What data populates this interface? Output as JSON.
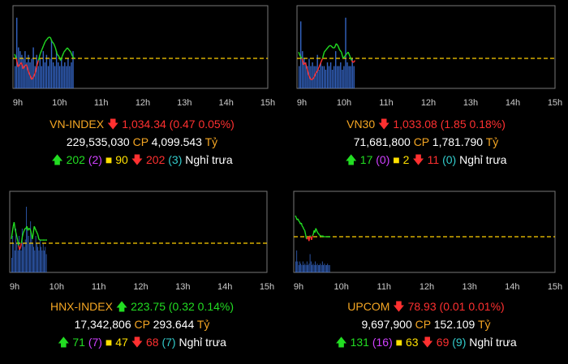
{
  "time_ticks": [
    "9h",
    "10h",
    "11h",
    "12h",
    "13h",
    "14h",
    "15h"
  ],
  "colors": {
    "up": "#22dd22",
    "down": "#ff3030",
    "ref": "#ffd000",
    "volume": "#3a6fd8",
    "border": "#777777"
  },
  "chart_data": [
    {
      "type": "line",
      "name": "VN-INDEX",
      "x_ticks": [
        "9h",
        "10h",
        "11h",
        "12h",
        "13h",
        "14h",
        "15h"
      ],
      "close": "1,034.34",
      "arrow": "down",
      "change": "(0.47 0.05%)",
      "volume": "229,535,030",
      "value_label": "CP",
      "value": "4,099.543",
      "unit": "Tỷ",
      "adv_arrow": "up",
      "adv": "202",
      "ceil": "(2)",
      "ref": "90",
      "dec_arrow": "down",
      "dec": "202",
      "floor": "(3)",
      "session": "Nghỉ trưa",
      "price_profile": [
        0.2,
        0.0,
        -0.4,
        -0.3,
        -0.2,
        -0.5,
        -0.35,
        -0.3,
        -0.6,
        -0.8,
        -1.0,
        -0.9,
        -0.7,
        -0.4,
        -0.1,
        0.2,
        0.4,
        0.6,
        0.8,
        0.9,
        1.0,
        1.0,
        0.8,
        0.7,
        0.5,
        0.2,
        0.1,
        -0.1,
        0.1,
        0.3,
        0.4,
        0.5,
        0.4,
        0.3,
        0.1,
        0.0
      ],
      "volume_profile": [
        0.3,
        0.95,
        0.55,
        0.5,
        0.45,
        0.4,
        0.5,
        0.35,
        0.45,
        0.35,
        0.4,
        0.55,
        0.3,
        0.45,
        0.3,
        0.4,
        0.3,
        0.5,
        0.35,
        0.45,
        0.3,
        0.4,
        0.65,
        0.35,
        0.3,
        0.5,
        0.35,
        0.3,
        0.4,
        0.3,
        0.35,
        0.3,
        0.4,
        0.3,
        0.35,
        0.5
      ]
    },
    {
      "type": "line",
      "name": "VN30",
      "x_ticks": [
        "9h",
        "10h",
        "11h",
        "12h",
        "13h",
        "14h",
        "15h"
      ],
      "close": "1,033.08",
      "arrow": "down",
      "change": "(1.85 0.18%)",
      "volume": "71,681,800",
      "value_label": "CP",
      "value": "1,781.790",
      "unit": "Tỷ",
      "adv_arrow": "up",
      "adv": "17",
      "ceil": "(0)",
      "ref": "2",
      "dec_arrow": "down",
      "dec": "11",
      "floor": "(0)",
      "session": "Nghỉ trưa",
      "price_profile": [
        0.3,
        0.1,
        0.0,
        -0.3,
        -0.2,
        -0.5,
        -0.8,
        -1.0,
        -1.0,
        -0.9,
        -0.7,
        -0.6,
        -0.4,
        -0.2,
        0.0,
        0.3,
        0.4,
        0.5,
        0.6,
        0.6,
        0.5,
        0.5,
        0.7,
        0.6,
        0.4,
        0.3,
        0.0,
        0.1,
        0.2,
        0.3,
        0.1,
        -0.1,
        -0.2,
        -0.1
      ],
      "volume_profile": [
        0.3,
        0.9,
        0.5,
        0.4,
        0.35,
        0.3,
        0.4,
        0.3,
        0.35,
        0.3,
        0.3,
        0.45,
        0.25,
        0.35,
        0.3,
        0.3,
        0.25,
        0.35,
        0.3,
        0.35,
        0.25,
        0.3,
        0.5,
        0.3,
        0.3,
        0.35,
        0.25,
        0.3,
        0.95,
        0.35,
        0.3,
        0.3,
        0.4,
        0.3
      ]
    },
    {
      "type": "line",
      "name": "HNX-INDEX",
      "x_ticks": [
        "9h",
        "10h",
        "11h",
        "12h",
        "13h",
        "14h",
        "15h"
      ],
      "close": "223.75",
      "arrow": "up",
      "change": "(0.32 0.14%)",
      "volume": "17,342,806",
      "value_label": "CP",
      "value": "293.644",
      "unit": "Tỷ",
      "adv_arrow": "up",
      "adv": "71",
      "ceil": "(7)",
      "ref": "47",
      "dec_arrow": "down",
      "dec": "68",
      "floor": "(7)",
      "session": "Nghỉ trưa",
      "price_profile": [
        0.2,
        0.5,
        0.8,
        1.0,
        0.7,
        0.5,
        0.3,
        0.1,
        -0.1,
        -0.3,
        -0.2,
        0.0,
        0.3,
        0.5,
        0.6,
        0.7,
        0.7,
        0.8,
        0.6,
        0.7,
        0.7,
        0.6,
        0.4,
        0.2,
        0.5,
        0.8,
        0.7,
        0.6,
        0.5,
        0.4,
        0.2,
        0.15,
        0.15,
        0.15,
        0.15,
        0.15,
        0.15,
        0.15,
        0.15,
        0.15
      ],
      "volume_profile": [
        0.2,
        0.5,
        0.4,
        0.3,
        0.6,
        0.4,
        0.3,
        0.5,
        0.35,
        0.3,
        0.6,
        0.4,
        0.35,
        0.45,
        0.9,
        0.6,
        0.5,
        0.4,
        0.7,
        0.5,
        0.4,
        0.35,
        0.3,
        0.5,
        0.4,
        0.35,
        0.3,
        0.45,
        0.35,
        0.3,
        0.4,
        0.3,
        0.35,
        0.25
      ]
    },
    {
      "type": "line",
      "name": "UPCOM",
      "x_ticks": [
        "9h",
        "10h",
        "11h",
        "12h",
        "13h",
        "14h",
        "15h"
      ],
      "close": "78.93",
      "arrow": "down",
      "change": "(0.01 0.01%)",
      "volume": "9,697,900",
      "value_label": "CP",
      "value": "152.109",
      "unit": "Tỷ",
      "adv_arrow": "up",
      "adv": "131",
      "ceil": "(16)",
      "ref": "63",
      "dec_arrow": "down",
      "dec": "69",
      "floor": "(9)",
      "session": "Nghỉ trưa",
      "price_profile": [
        1.0,
        0.9,
        0.8,
        0.85,
        0.75,
        0.7,
        0.6,
        0.65,
        0.5,
        0.45,
        0.35,
        0.3,
        0.1,
        -0.1,
        -0.1,
        0.0,
        -0.2,
        0.05,
        0.0,
        -0.15,
        0.05,
        0.1,
        0.3,
        0.2,
        0.4,
        0.3,
        0.2,
        0.15,
        0.1,
        0.05,
        0.05,
        0.0,
        0.05,
        0.0,
        0.0,
        0.0,
        0.0,
        0.0,
        0.0,
        0.0,
        0.0,
        0.0
      ],
      "volume_profile": [
        0.15,
        0.3,
        0.15,
        0.1,
        0.15,
        0.12,
        0.1,
        0.15,
        0.1,
        0.12,
        0.1,
        0.15,
        0.1,
        0.12,
        0.25,
        0.15,
        0.1,
        0.12,
        0.1,
        0.15,
        0.1,
        0.12,
        0.1,
        0.1,
        0.12,
        0.1,
        0.15,
        0.1,
        0.12,
        0.1,
        0.1,
        0.12,
        0.1,
        0.1
      ]
    }
  ]
}
